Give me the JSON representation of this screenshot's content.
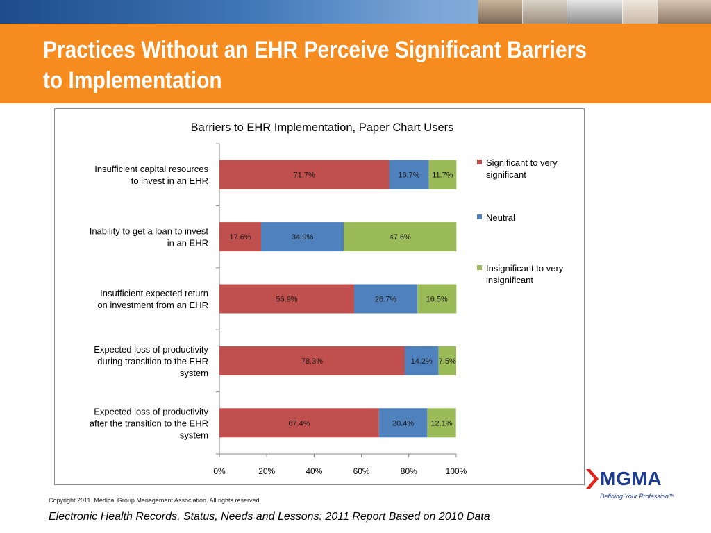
{
  "slide": {
    "title": "Practices Without an EHR Perceive Significant Barriers to Implementation",
    "copyright": "Copyright 2011. Medical Group Management Association. All rights reserved.",
    "source": "Electronic Health Records, Status, Needs and Lessons: 2011 Report Based on 2010 Data"
  },
  "logo": {
    "wordmark": "MGMA",
    "tagline": "Defining Your Profession™",
    "brand_color": "#1d3c8f",
    "accent_color": "#e2231a"
  },
  "colors": {
    "title_band": "#f68b1f",
    "significant": "#c0504d",
    "neutral": "#4f81bd",
    "insignificant": "#9bbb59"
  },
  "chart_data": {
    "type": "bar",
    "orientation": "horizontal",
    "stacked": true,
    "title": "Barriers to EHR Implementation, Paper Chart Users",
    "categories": [
      [
        "Insufficient capital resources",
        "to invest in an EHR"
      ],
      [
        "Inability to get a loan to invest",
        "in an EHR"
      ],
      [
        "Insufficient expected return",
        "on investment from an EHR"
      ],
      [
        "Expected loss of productivity",
        "during transition to the EHR",
        "system"
      ],
      [
        "Expected loss of productivity",
        "after the transition to the EHR",
        "system"
      ]
    ],
    "series": [
      {
        "name": "Significant to very significant",
        "legend_lines": [
          "Significant to very",
          "significant"
        ],
        "color": "#c0504d",
        "values": [
          71.7,
          17.6,
          56.9,
          78.3,
          67.4
        ],
        "labels": [
          "71.7%",
          "17.6%",
          "56.9%",
          "78.3%",
          "67.4%"
        ]
      },
      {
        "name": "Neutral",
        "legend_lines": [
          "Neutral"
        ],
        "color": "#4f81bd",
        "values": [
          16.7,
          34.9,
          26.7,
          14.2,
          20.4
        ],
        "labels": [
          "16.7%",
          "34.9%",
          "26.7%",
          "14.2%",
          "20.4%"
        ]
      },
      {
        "name": "Insignificant to very insignificant",
        "legend_lines": [
          "Insignificant to very",
          "insignificant"
        ],
        "color": "#9bbb59",
        "values": [
          11.7,
          47.6,
          16.5,
          7.5,
          12.1
        ],
        "labels": [
          "11.7%",
          "47.6%",
          "16.5%",
          "7.5%",
          "12.1%"
        ]
      }
    ],
    "xlim": [
      0,
      100
    ],
    "xticks": [
      "0%",
      "20%",
      "40%",
      "60%",
      "80%",
      "100%"
    ],
    "xlabel": "",
    "ylabel": "",
    "grid": false,
    "legend": "right"
  }
}
